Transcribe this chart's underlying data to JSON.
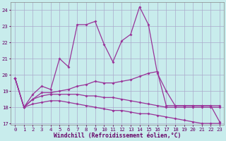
{
  "xlabel": "Windchill (Refroidissement éolien,°C)",
  "background_color": "#c8ecec",
  "grid_color": "#aaaacc",
  "line_color": "#993399",
  "x_values": [
    0,
    1,
    2,
    3,
    4,
    5,
    6,
    7,
    8,
    9,
    10,
    11,
    12,
    13,
    14,
    15,
    16,
    17,
    18,
    19,
    20,
    21,
    22,
    23
  ],
  "series1": [
    19.8,
    18.0,
    18.8,
    19.3,
    19.1,
    21.0,
    20.5,
    23.1,
    23.1,
    23.3,
    21.9,
    20.8,
    22.1,
    22.5,
    24.2,
    23.1,
    20.1,
    19.0,
    18.1,
    18.1,
    18.1,
    18.1,
    18.1,
    17.1
  ],
  "series2": [
    19.8,
    18.0,
    18.5,
    18.9,
    18.9,
    19.0,
    19.1,
    19.3,
    19.4,
    19.6,
    19.5,
    19.5,
    19.6,
    19.7,
    19.9,
    20.1,
    20.2,
    18.1,
    18.1,
    18.1,
    18.1,
    18.1,
    18.1,
    18.1
  ],
  "series3": [
    19.8,
    18.0,
    18.5,
    18.7,
    18.8,
    18.8,
    18.8,
    18.8,
    18.7,
    18.7,
    18.6,
    18.6,
    18.5,
    18.4,
    18.3,
    18.2,
    18.1,
    18.0,
    18.0,
    18.0,
    18.0,
    18.0,
    18.0,
    18.0
  ],
  "series4": [
    19.8,
    18.0,
    18.2,
    18.3,
    18.4,
    18.4,
    18.3,
    18.2,
    18.1,
    18.0,
    17.9,
    17.8,
    17.8,
    17.7,
    17.6,
    17.6,
    17.5,
    17.4,
    17.3,
    17.2,
    17.1,
    17.0,
    17.0,
    17.0
  ],
  "ylim": [
    16.9,
    24.5
  ],
  "yticks": [
    17,
    18,
    19,
    20,
    21,
    22,
    23,
    24
  ],
  "xlim": [
    -0.5,
    23.5
  ],
  "marker_size": 2.0,
  "line_width": 0.9,
  "tick_fontsize": 5.2,
  "xlabel_fontsize": 5.8,
  "tick_color": "#660066",
  "label_color": "#660066"
}
